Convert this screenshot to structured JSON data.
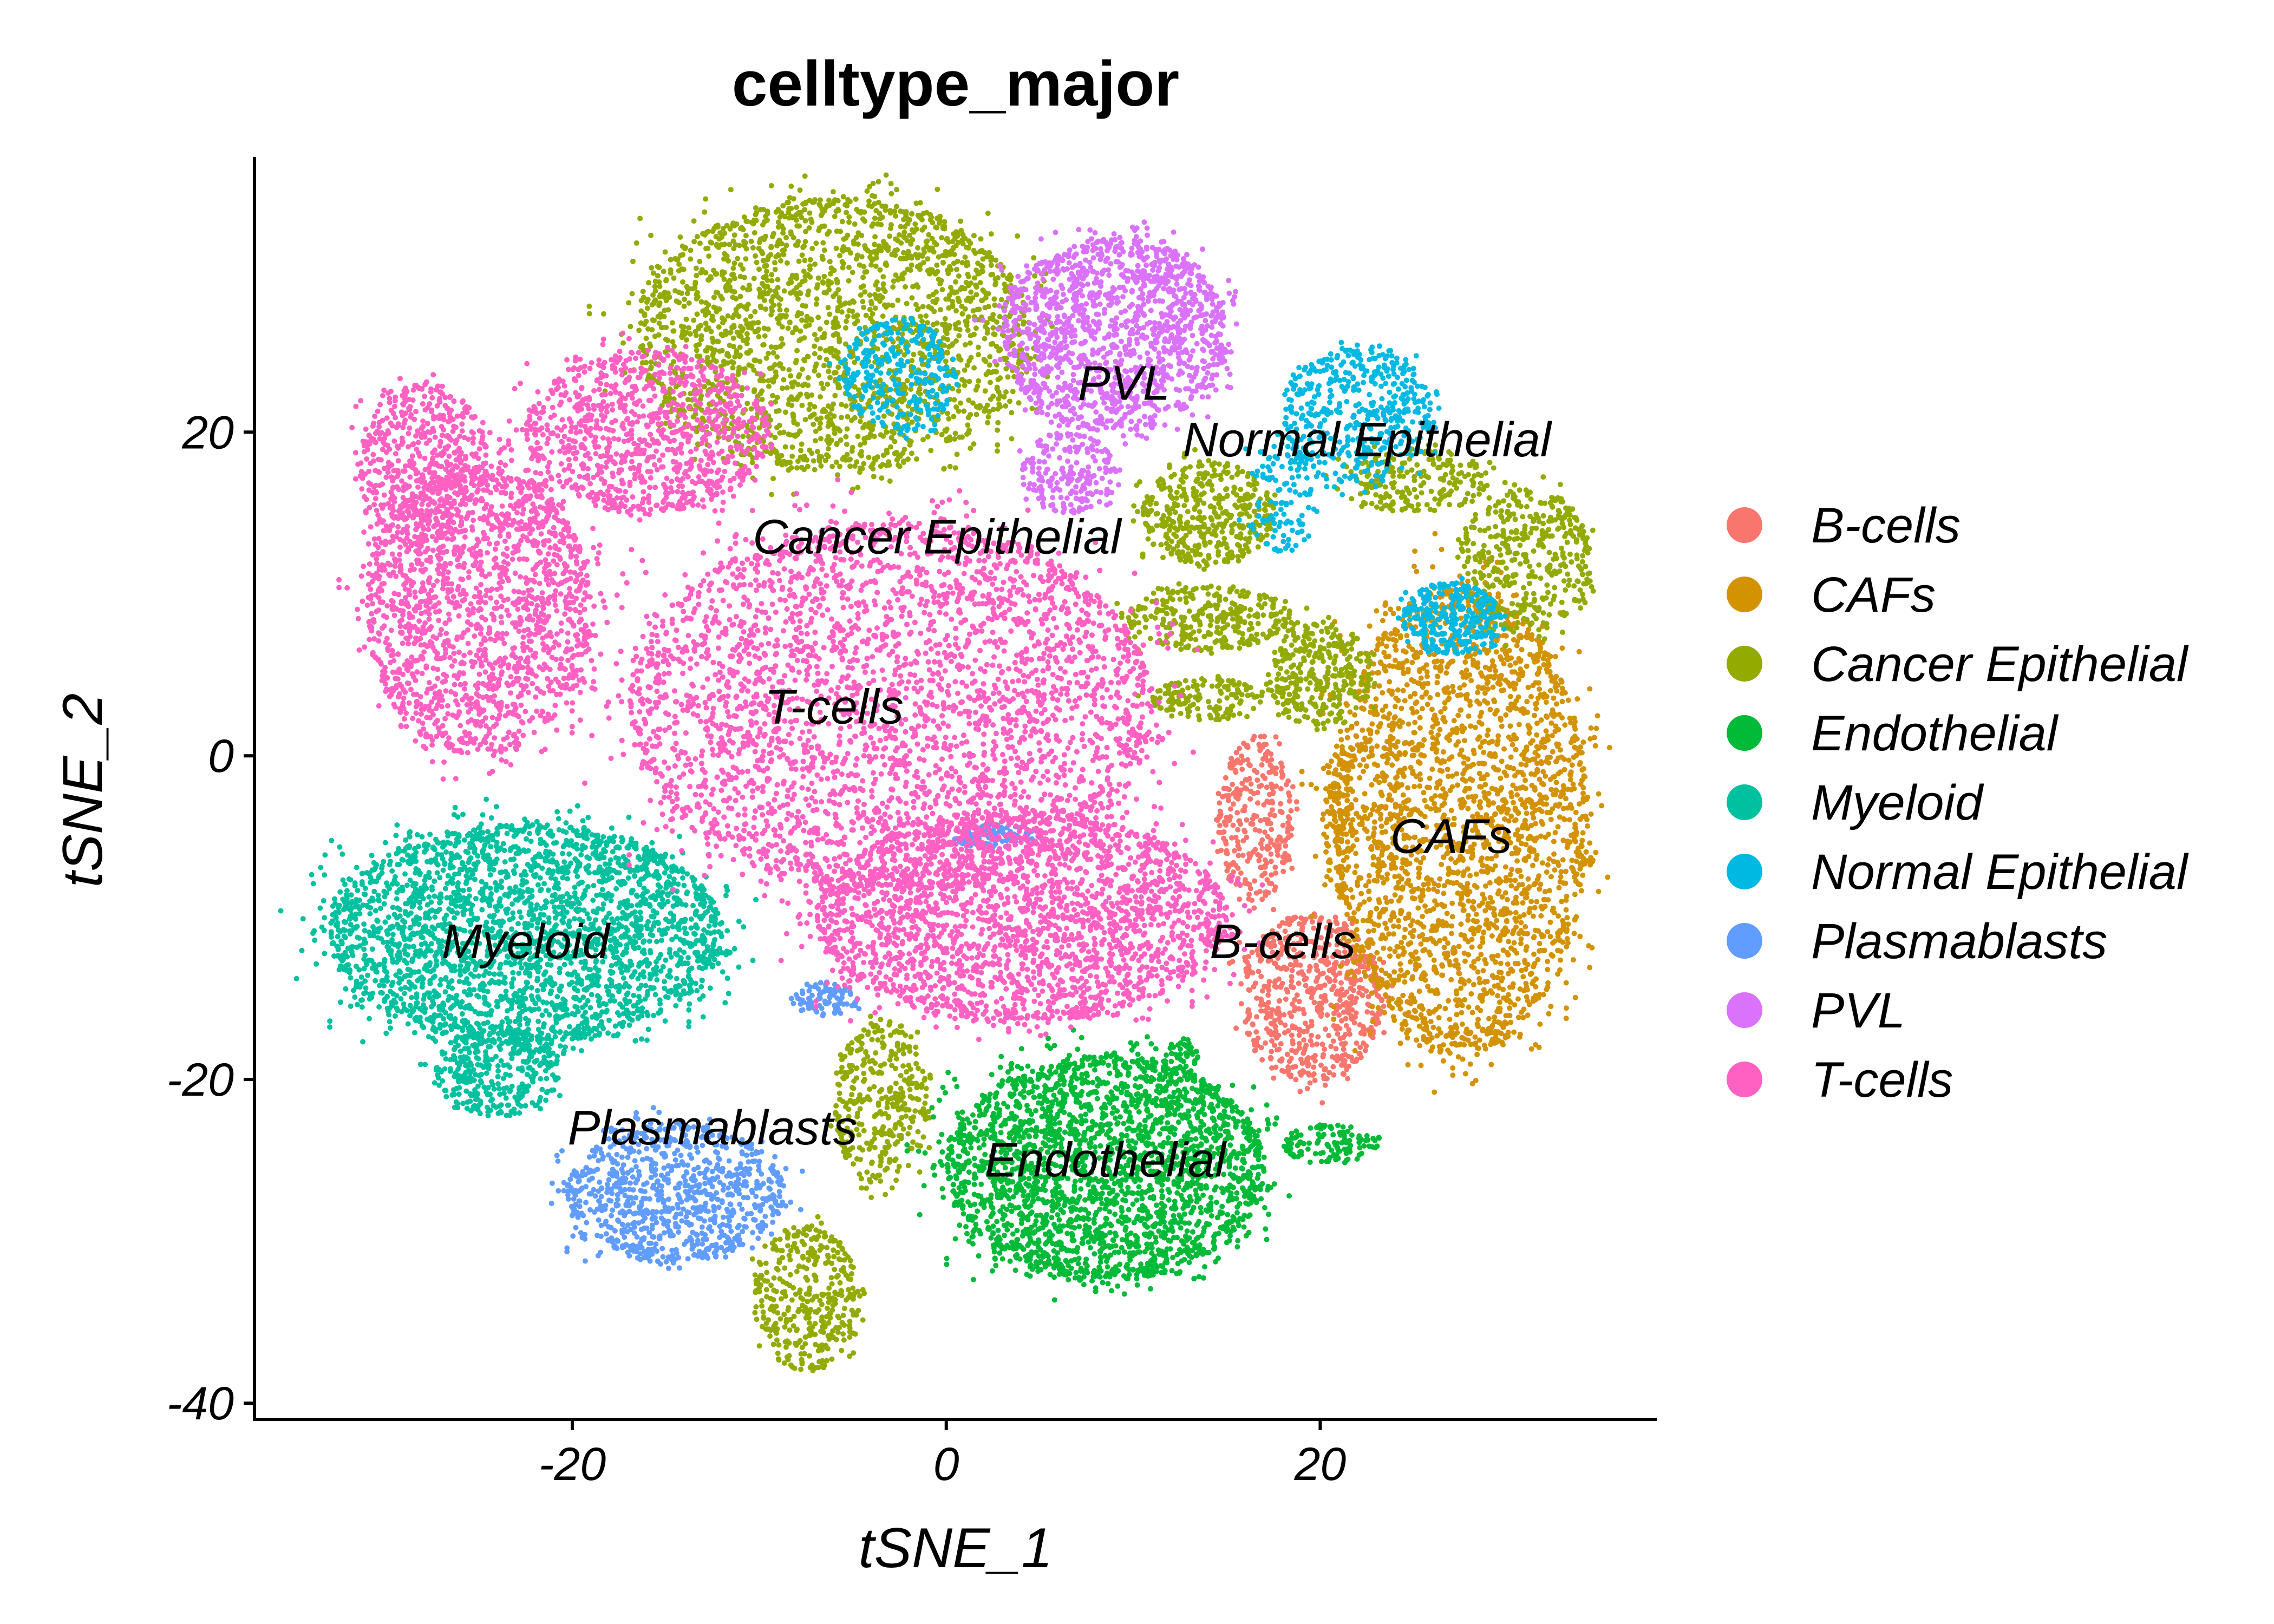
{
  "chart_data": {
    "type": "scatter",
    "title": "celltype_major",
    "xlabel": "tSNE_1",
    "ylabel": "tSNE_2",
    "xlim": [
      -37,
      38
    ],
    "ylim": [
      -41,
      37
    ],
    "x_ticks": [
      -20,
      0,
      20
    ],
    "y_ticks": [
      20,
      0,
      -20,
      -40
    ],
    "grid": false,
    "legend_position": "right",
    "colors": {
      "B-cells": "#F8766D",
      "CAFs": "#D39200",
      "Cancer Epithelial": "#93AA00",
      "Endothelial": "#00BA38",
      "Myeloid": "#00C19F",
      "Normal Epithelial": "#00B9E3",
      "Plasmablasts": "#619CFF",
      "PVL": "#DB72FB",
      "T-cells": "#FF61C3"
    },
    "series": [
      {
        "name": "B-cells",
        "clusters": [
          {
            "cx": 16.5,
            "cy": -4,
            "rx": 2.0,
            "ry": 5,
            "n": 300
          },
          {
            "cx": 19.5,
            "cy": -15,
            "rx": 3.8,
            "ry": 5.2,
            "n": 650
          }
        ]
      },
      {
        "name": "CAFs",
        "clusters": [
          {
            "cx": 27.5,
            "cy": -4,
            "rx": 6.8,
            "ry": 14.5,
            "n": 2600
          },
          {
            "cx": 21,
            "cy": -4,
            "rx": 0.8,
            "ry": 4.5,
            "n": 90
          }
        ]
      },
      {
        "name": "Cancer Epithelial",
        "clusters": [
          {
            "cx": -6,
            "cy": 26,
            "rx": 10.5,
            "ry": 8.5,
            "n": 2200
          },
          {
            "cx": 14,
            "cy": 15,
            "rx": 3.5,
            "ry": 3.2,
            "n": 420
          },
          {
            "cx": 14,
            "cy": 8.5,
            "rx": 4.5,
            "ry": 2.0,
            "n": 300
          },
          {
            "cx": 20,
            "cy": 5,
            "rx": 2.8,
            "ry": 3.2,
            "n": 320
          },
          {
            "cx": 31,
            "cy": 12,
            "rx": 3.5,
            "ry": 4.5,
            "n": 420
          },
          {
            "cx": 25,
            "cy": 17,
            "rx": 4.0,
            "ry": 2.0,
            "n": 220
          },
          {
            "cx": 14,
            "cy": 3.5,
            "rx": 3.0,
            "ry": 1.3,
            "n": 150
          },
          {
            "cx": -3.5,
            "cy": -21.5,
            "rx": 2.5,
            "ry": 5.0,
            "n": 360
          },
          {
            "cx": -7.5,
            "cy": -33.5,
            "rx": 2.8,
            "ry": 4.5,
            "n": 380
          }
        ]
      },
      {
        "name": "Endothelial",
        "clusters": [
          {
            "cx": 8.5,
            "cy": -25.5,
            "rx": 8.5,
            "ry": 7.0,
            "n": 2500
          },
          {
            "cx": 20.5,
            "cy": -24,
            "rx": 2.5,
            "ry": 1.2,
            "n": 120
          },
          {
            "cx": 12.5,
            "cy": -18.5,
            "rx": 1.0,
            "ry": 1.0,
            "n": 40
          }
        ]
      },
      {
        "name": "Myeloid",
        "clusters": [
          {
            "cx": -22.5,
            "cy": -11,
            "rx": 10.5,
            "ry": 6.8,
            "n": 2700
          },
          {
            "cx": -24,
            "cy": -19.5,
            "rx": 3.3,
            "ry": 2.8,
            "n": 360
          }
        ]
      },
      {
        "name": "Normal Epithelial",
        "clusters": [
          {
            "cx": 22,
            "cy": 21,
            "rx": 4.0,
            "ry": 4.2,
            "n": 500
          },
          {
            "cx": 27,
            "cy": 8.5,
            "rx": 2.6,
            "ry": 2.2,
            "n": 300
          },
          {
            "cx": -2.5,
            "cy": 23.5,
            "rx": 3.0,
            "ry": 3.5,
            "n": 300
          },
          {
            "cx": 18,
            "cy": 16,
            "rx": 2.0,
            "ry": 3.5,
            "n": 120
          }
        ]
      },
      {
        "name": "Plasmablasts",
        "clusters": [
          {
            "cx": -14.5,
            "cy": -27,
            "rx": 5.8,
            "ry": 4.3,
            "n": 900
          },
          {
            "cx": -6.5,
            "cy": -15,
            "rx": 1.8,
            "ry": 1.0,
            "n": 90
          },
          {
            "cx": 2.5,
            "cy": -5,
            "rx": 2.0,
            "ry": 0.8,
            "n": 90
          }
        ]
      },
      {
        "name": "PVL",
        "clusters": [
          {
            "cx": 9,
            "cy": 26,
            "rx": 6.0,
            "ry": 6.0,
            "n": 1400
          },
          {
            "cx": 6.5,
            "cy": 17.5,
            "rx": 2.5,
            "ry": 2.5,
            "n": 200
          }
        ]
      },
      {
        "name": "T-cells",
        "clusters": [
          {
            "cx": -3,
            "cy": 3,
            "rx": 14.0,
            "ry": 11.5,
            "n": 5800
          },
          {
            "cx": 4,
            "cy": -10,
            "rx": 11.0,
            "ry": 6.5,
            "n": 2400
          },
          {
            "cx": -25,
            "cy": 9,
            "rx": 6.0,
            "ry": 9.0,
            "n": 1700
          },
          {
            "cx": -16,
            "cy": 20,
            "rx": 6.5,
            "ry": 5.0,
            "n": 1000
          },
          {
            "cx": -28,
            "cy": 18,
            "rx": 3.5,
            "ry": 5.0,
            "n": 550
          }
        ]
      }
    ],
    "cluster_labels": [
      {
        "text": "PVL",
        "x": 9.5,
        "y": 23
      },
      {
        "text": "Normal Epithelial",
        "x": 22.5,
        "y": 19.5
      },
      {
        "text": "Cancer Epithelial",
        "x": -0.5,
        "y": 13.5
      },
      {
        "text": "T-cells",
        "x": -6,
        "y": 3
      },
      {
        "text": "CAFs",
        "x": 27,
        "y": -5
      },
      {
        "text": "Myeloid",
        "x": -22.5,
        "y": -11.5
      },
      {
        "text": "B-cells",
        "x": 18,
        "y": -11.5
      },
      {
        "text": "Plasmablasts",
        "x": -12.5,
        "y": -23
      },
      {
        "text": "Endothelial",
        "x": 8.5,
        "y": -25
      }
    ]
  }
}
